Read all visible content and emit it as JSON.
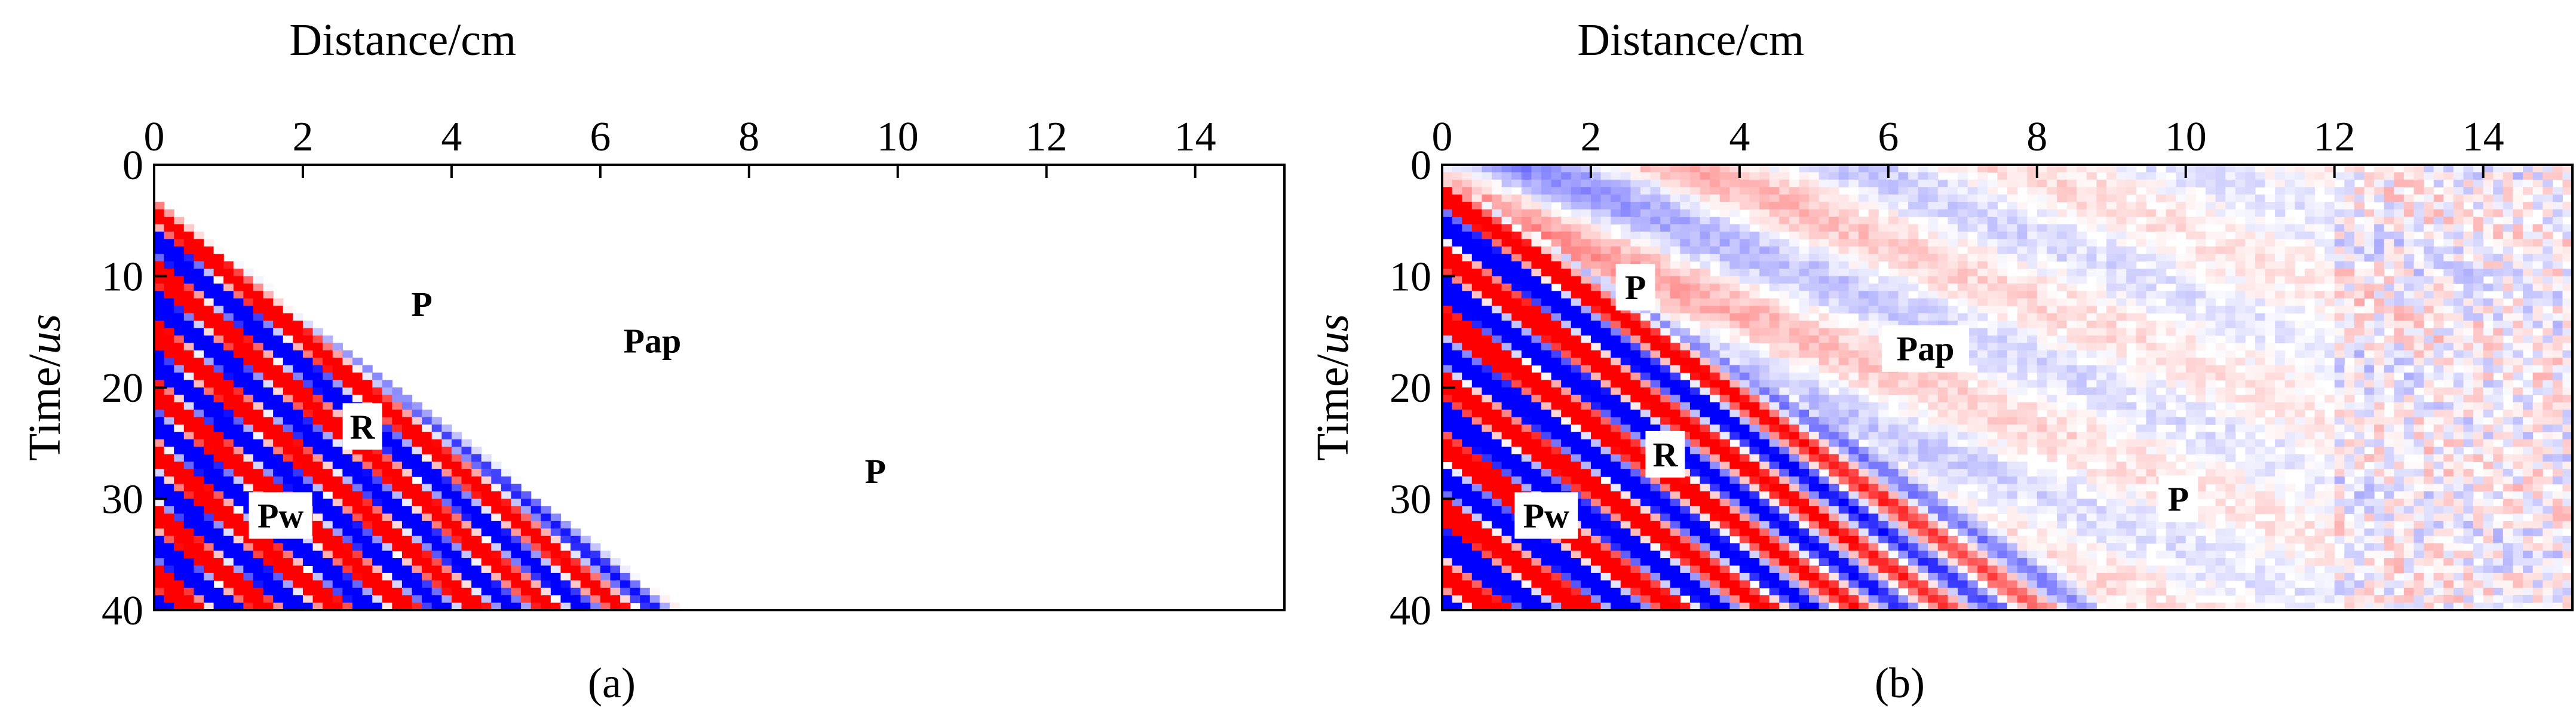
{
  "figure": {
    "panels": [
      {
        "id": "a",
        "caption": "(a)"
      },
      {
        "id": "b",
        "caption": "(b)"
      }
    ]
  },
  "chart_data": [
    {
      "type": "heatmap",
      "panel": "(a)",
      "xlabel": "Distance/cm",
      "ylabel": "Time/us",
      "xlim": [
        0,
        15.2
      ],
      "ylim": [
        40,
        0
      ],
      "x_ticks": [
        0,
        2,
        4,
        6,
        8,
        10,
        12,
        14
      ],
      "y_ticks": [
        0,
        10,
        20,
        30,
        40
      ],
      "colors": {
        "positive": "#ff0000",
        "negative": "#0000ff",
        "zero": "#ffffff"
      },
      "kind": "simulated",
      "annotations": [
        {
          "text": "P",
          "x": 3.6,
          "y": 12.5
        },
        {
          "text": "Pap",
          "x": 6.7,
          "y": 15.8
        },
        {
          "text": "R",
          "x": 2.8,
          "y": 23.5
        },
        {
          "text": "P",
          "x": 9.7,
          "y": 27.5
        },
        {
          "text": "Pw",
          "x": 1.7,
          "y": 31.5
        }
      ]
    },
    {
      "type": "heatmap",
      "panel": "(b)",
      "xlabel": "Distance/cm",
      "ylabel": "Time/us",
      "xlim": [
        0,
        15.2
      ],
      "ylim": [
        40,
        0
      ],
      "x_ticks": [
        0,
        2,
        4,
        6,
        8,
        10,
        12,
        14
      ],
      "y_ticks": [
        0,
        10,
        20,
        30,
        40
      ],
      "colors": {
        "positive": "#ff0000",
        "negative": "#0000ff",
        "zero": "#ffffff"
      },
      "kind": "measured",
      "annotations": [
        {
          "text": "P",
          "x": 2.6,
          "y": 11.0
        },
        {
          "text": "Pap",
          "x": 6.5,
          "y": 16.5
        },
        {
          "text": "R",
          "x": 3.0,
          "y": 26.0
        },
        {
          "text": "P",
          "x": 9.9,
          "y": 30.0
        },
        {
          "text": "Pw",
          "x": 1.4,
          "y": 31.5
        }
      ]
    }
  ]
}
